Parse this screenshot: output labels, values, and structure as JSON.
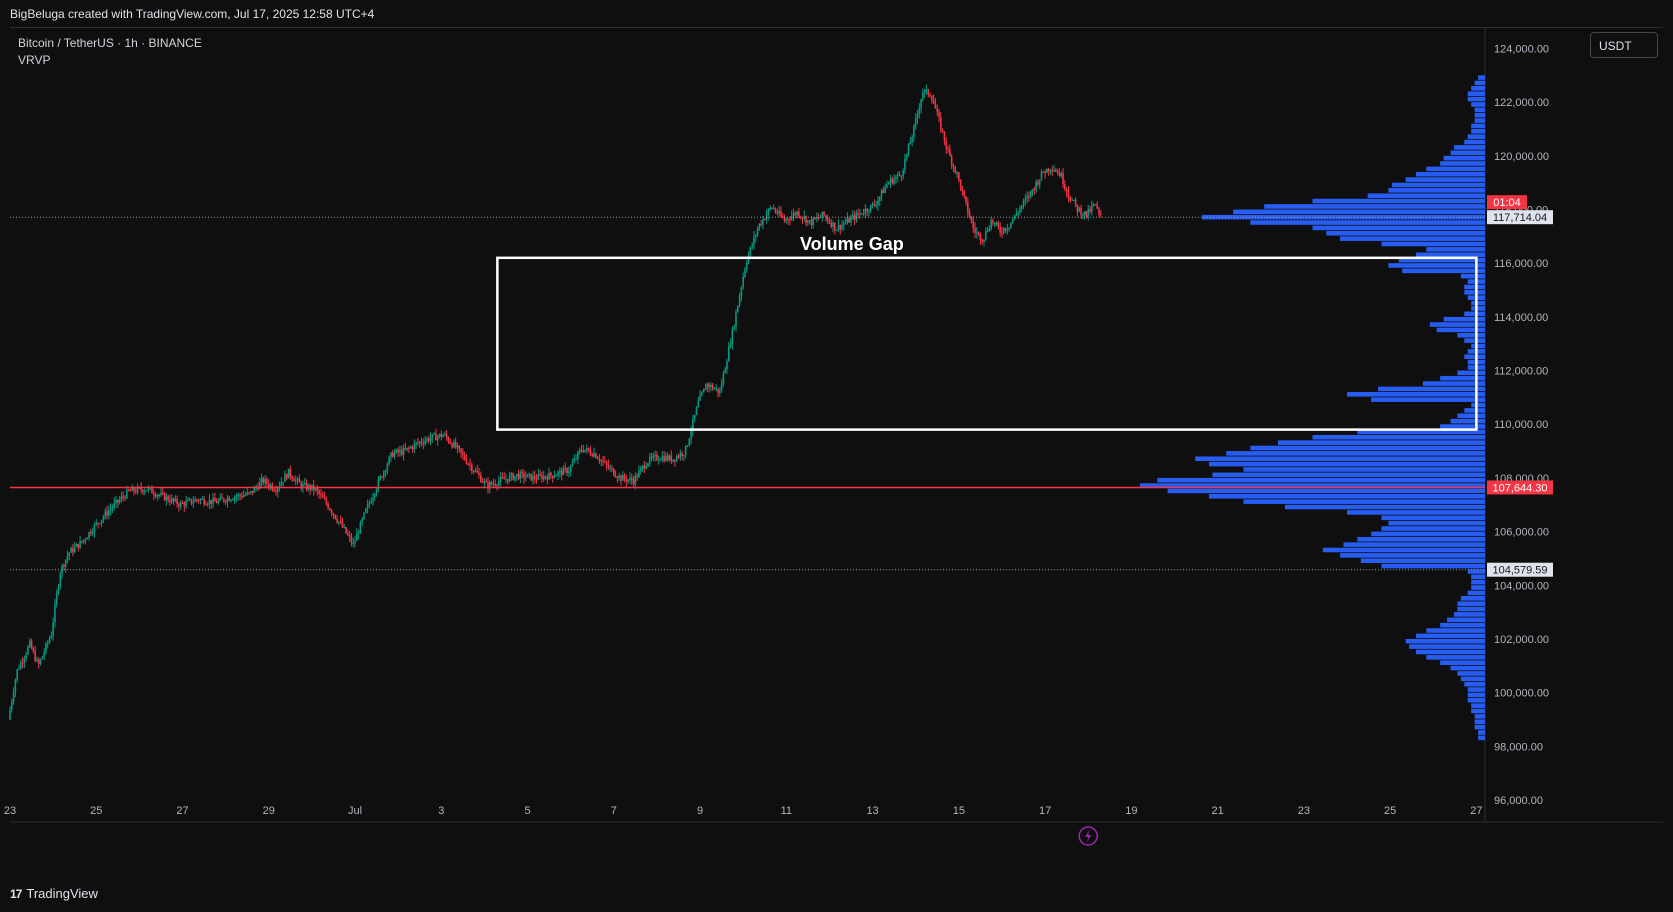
{
  "header": {
    "credit": "BigBeluga created with TradingView.com, Jul 17, 2025 12:58 UTC+4"
  },
  "legend": {
    "symbol": "Bitcoin / TetherUS · 1h · BINANCE",
    "indicator": "VRVP"
  },
  "toolbar": {
    "currency": "USDT"
  },
  "footer": {
    "brand": "TradingView",
    "logo": "17"
  },
  "colors": {
    "up": "#089981",
    "down": "#f23645",
    "profile": "#2962ff",
    "poc": "#f23645",
    "background": "#0f0f0f"
  },
  "chart_data": {
    "type": "candlestick",
    "timeframe": "1h",
    "ylim": [
      96000,
      124800
    ],
    "y_ticks": [
      96000,
      98000,
      100000,
      102000,
      104000,
      106000,
      108000,
      110000,
      112000,
      114000,
      116000,
      118000,
      120000,
      122000,
      124000
    ],
    "x_ticks": [
      "23",
      "25",
      "27",
      "29",
      "Jul",
      "3",
      "5",
      "7",
      "9",
      "11",
      "13",
      "15",
      "17",
      "19",
      "21",
      "23",
      "25",
      "27"
    ],
    "x_tick_days": [
      -8,
      -6,
      -4,
      -2,
      0,
      2,
      4,
      6,
      8,
      10,
      12,
      14,
      16,
      18,
      20,
      22,
      24,
      26
    ],
    "x_range_days": [
      -8,
      26.2
    ],
    "price_path": [
      [
        -8.0,
        99000
      ],
      [
        -7.8,
        100800
      ],
      [
        -7.5,
        101800
      ],
      [
        -7.3,
        101000
      ],
      [
        -7.0,
        102200
      ],
      [
        -6.8,
        104500
      ],
      [
        -6.6,
        105200
      ],
      [
        -6.3,
        105600
      ],
      [
        -6.0,
        106200
      ],
      [
        -5.6,
        106900
      ],
      [
        -5.2,
        107500
      ],
      [
        -4.8,
        107600
      ],
      [
        -4.4,
        107300
      ],
      [
        -4.0,
        107000
      ],
      [
        -3.6,
        107200
      ],
      [
        -3.2,
        107100
      ],
      [
        -2.8,
        107300
      ],
      [
        -2.4,
        107400
      ],
      [
        -2.1,
        107900
      ],
      [
        -1.8,
        107600
      ],
      [
        -1.5,
        108200
      ],
      [
        -1.2,
        107700
      ],
      [
        -0.9,
        107600
      ],
      [
        -0.6,
        107000
      ],
      [
        -0.3,
        106300
      ],
      [
        0.0,
        105500
      ],
      [
        0.3,
        106800
      ],
      [
        0.6,
        107900
      ],
      [
        0.9,
        108900
      ],
      [
        1.2,
        109000
      ],
      [
        1.5,
        109300
      ],
      [
        1.8,
        109500
      ],
      [
        2.1,
        109600
      ],
      [
        2.4,
        109100
      ],
      [
        2.8,
        108300
      ],
      [
        3.1,
        107700
      ],
      [
        3.4,
        107900
      ],
      [
        3.8,
        108100
      ],
      [
        4.2,
        108000
      ],
      [
        4.6,
        108100
      ],
      [
        5.0,
        108300
      ],
      [
        5.3,
        109100
      ],
      [
        5.6,
        108900
      ],
      [
        5.9,
        108400
      ],
      [
        6.2,
        108000
      ],
      [
        6.5,
        107900
      ],
      [
        6.8,
        108600
      ],
      [
        7.1,
        108800
      ],
      [
        7.4,
        108700
      ],
      [
        7.7,
        109000
      ],
      [
        8.0,
        110800
      ],
      [
        8.2,
        111500
      ],
      [
        8.5,
        111200
      ],
      [
        8.8,
        113500
      ],
      [
        9.1,
        116000
      ],
      [
        9.4,
        117400
      ],
      [
        9.7,
        118100
      ],
      [
        10.0,
        117600
      ],
      [
        10.3,
        117900
      ],
      [
        10.6,
        117500
      ],
      [
        10.9,
        117800
      ],
      [
        11.2,
        117300
      ],
      [
        11.5,
        117600
      ],
      [
        11.8,
        117900
      ],
      [
        12.1,
        118200
      ],
      [
        12.4,
        119000
      ],
      [
        12.7,
        119300
      ],
      [
        13.0,
        121000
      ],
      [
        13.2,
        122400
      ],
      [
        13.4,
        122300
      ],
      [
        13.6,
        121200
      ],
      [
        13.8,
        120100
      ],
      [
        14.0,
        119300
      ],
      [
        14.2,
        118200
      ],
      [
        14.4,
        117200
      ],
      [
        14.6,
        116900
      ],
      [
        14.8,
        117600
      ],
      [
        15.0,
        117200
      ],
      [
        15.2,
        117400
      ],
      [
        15.4,
        117900
      ],
      [
        15.7,
        118600
      ],
      [
        16.0,
        119400
      ],
      [
        16.2,
        119600
      ],
      [
        16.4,
        119300
      ],
      [
        16.6,
        118500
      ],
      [
        16.8,
        118000
      ],
      [
        17.0,
        117800
      ],
      [
        17.2,
        118200
      ],
      [
        17.3,
        117714
      ]
    ],
    "last_price": 117714.04,
    "countdown": "01:04",
    "horizontal_lines": [
      {
        "price": 107644.3,
        "label": "107,644.30",
        "style": "solid",
        "color": "#f23645"
      },
      {
        "price": 104579.59,
        "label": "104,579.59",
        "style": "dotted"
      },
      {
        "price": 117714.04,
        "label": "117,714.04",
        "style": "dotted"
      }
    ],
    "annotation": {
      "text": "Volume Gap",
      "x_days": 3.3,
      "x2_days": 26.0,
      "y_top": 116200,
      "y_bottom": 109800
    },
    "volume_profile": {
      "name": "VRVP",
      "bin_size": 200,
      "bins": [
        [
          98200,
          0.02
        ],
        [
          98400,
          0.02
        ],
        [
          98600,
          0.03
        ],
        [
          98800,
          0.03
        ],
        [
          99000,
          0.03
        ],
        [
          99200,
          0.04
        ],
        [
          99400,
          0.04
        ],
        [
          99600,
          0.05
        ],
        [
          99800,
          0.05
        ],
        [
          100000,
          0.05
        ],
        [
          100200,
          0.06
        ],
        [
          100400,
          0.07
        ],
        [
          100600,
          0.08
        ],
        [
          100800,
          0.1
        ],
        [
          101000,
          0.13
        ],
        [
          101200,
          0.17
        ],
        [
          101400,
          0.2
        ],
        [
          101600,
          0.22
        ],
        [
          101800,
          0.23
        ],
        [
          102000,
          0.2
        ],
        [
          102200,
          0.17
        ],
        [
          102400,
          0.13
        ],
        [
          102600,
          0.11
        ],
        [
          102800,
          0.09
        ],
        [
          103000,
          0.08
        ],
        [
          103200,
          0.08
        ],
        [
          103400,
          0.07
        ],
        [
          103600,
          0.05
        ],
        [
          103800,
          0.04
        ],
        [
          104000,
          0.04
        ],
        [
          104200,
          0.04
        ],
        [
          104400,
          0.05
        ],
        [
          104600,
          0.3
        ],
        [
          104800,
          0.36
        ],
        [
          105000,
          0.42
        ],
        [
          105200,
          0.47
        ],
        [
          105400,
          0.41
        ],
        [
          105600,
          0.37
        ],
        [
          105800,
          0.33
        ],
        [
          106000,
          0.3
        ],
        [
          106200,
          0.28
        ],
        [
          106400,
          0.3
        ],
        [
          106600,
          0.4
        ],
        [
          106800,
          0.58
        ],
        [
          107000,
          0.7
        ],
        [
          107200,
          0.8
        ],
        [
          107400,
          0.92
        ],
        [
          107600,
          1.0
        ],
        [
          107800,
          0.95
        ],
        [
          108000,
          0.79
        ],
        [
          108200,
          0.7
        ],
        [
          108400,
          0.8
        ],
        [
          108600,
          0.84
        ],
        [
          108800,
          0.75
        ],
        [
          109000,
          0.68
        ],
        [
          109200,
          0.6
        ],
        [
          109400,
          0.5
        ],
        [
          109600,
          0.37
        ],
        [
          109800,
          0.13
        ],
        [
          110000,
          0.1
        ],
        [
          110200,
          0.08
        ],
        [
          110400,
          0.06
        ],
        [
          110600,
          0.04
        ],
        [
          110800,
          0.33
        ],
        [
          111000,
          0.4
        ],
        [
          111200,
          0.31
        ],
        [
          111400,
          0.18
        ],
        [
          111600,
          0.13
        ],
        [
          111800,
          0.08
        ],
        [
          112000,
          0.05
        ],
        [
          112200,
          0.05
        ],
        [
          112400,
          0.06
        ],
        [
          112600,
          0.05
        ],
        [
          112800,
          0.04
        ],
        [
          113000,
          0.06
        ],
        [
          113200,
          0.08
        ],
        [
          113400,
          0.14
        ],
        [
          113600,
          0.16
        ],
        [
          113800,
          0.12
        ],
        [
          114000,
          0.06
        ],
        [
          114200,
          0.04
        ],
        [
          114400,
          0.04
        ],
        [
          114600,
          0.05
        ],
        [
          114800,
          0.06
        ],
        [
          115000,
          0.06
        ],
        [
          115200,
          0.05
        ],
        [
          115400,
          0.07
        ],
        [
          115600,
          0.24
        ],
        [
          115800,
          0.28
        ],
        [
          116000,
          0.25
        ],
        [
          116200,
          0.2
        ],
        [
          116400,
          0.17
        ],
        [
          116600,
          0.3
        ],
        [
          116800,
          0.42
        ],
        [
          117000,
          0.46
        ],
        [
          117200,
          0.5
        ],
        [
          117400,
          0.68
        ],
        [
          117600,
          0.82
        ],
        [
          117800,
          0.73
        ],
        [
          118000,
          0.64
        ],
        [
          118200,
          0.5
        ],
        [
          118400,
          0.34
        ],
        [
          118600,
          0.28
        ],
        [
          118800,
          0.27
        ],
        [
          119000,
          0.23
        ],
        [
          119200,
          0.2
        ],
        [
          119400,
          0.17
        ],
        [
          119600,
          0.13
        ],
        [
          119800,
          0.12
        ],
        [
          120000,
          0.1
        ],
        [
          120200,
          0.09
        ],
        [
          120400,
          0.06
        ],
        [
          120600,
          0.05
        ],
        [
          120800,
          0.04
        ],
        [
          121000,
          0.04
        ],
        [
          121200,
          0.03
        ],
        [
          121400,
          0.03
        ],
        [
          121600,
          0.03
        ],
        [
          121800,
          0.04
        ],
        [
          122000,
          0.05
        ],
        [
          122200,
          0.05
        ],
        [
          122400,
          0.04
        ],
        [
          122600,
          0.03
        ],
        [
          122800,
          0.02
        ]
      ]
    }
  }
}
